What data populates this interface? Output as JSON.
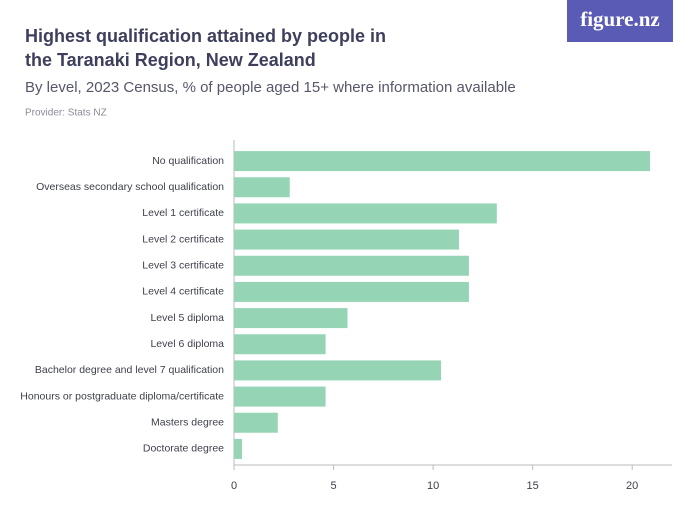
{
  "logo": "figure.nz",
  "chart_data": {
    "type": "barh",
    "title": [
      "Highest qualification attained by people in",
      "the Taranaki Region, New Zealand"
    ],
    "subtitle": "By level, 2023 Census, % of people aged 15+ where information available",
    "provider": "Provider: Stats NZ",
    "categories": [
      "No qualification",
      "Overseas secondary school qualification",
      "Level 1 certificate",
      "Level 2 certificate",
      "Level 3 certificate",
      "Level 4 certificate",
      "Level 5 diploma",
      "Level 6 diploma",
      "Bachelor degree and level 7 qualification",
      "Honours or postgraduate diploma/certificate",
      "Masters degree",
      "Doctorate degree"
    ],
    "values": [
      20.9,
      2.8,
      13.2,
      11.3,
      11.8,
      11.8,
      5.7,
      4.6,
      10.4,
      4.6,
      2.2,
      0.4
    ],
    "color": "#95d5b6",
    "xlim": [
      0,
      22
    ],
    "xticks": [
      0,
      5,
      10,
      15,
      20
    ]
  }
}
